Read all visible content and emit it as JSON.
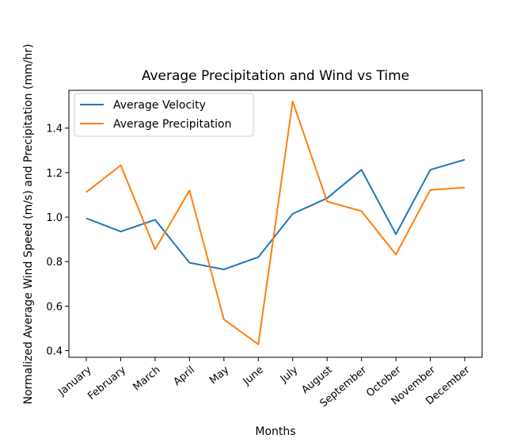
{
  "chart_data": {
    "type": "line",
    "title": "Average Precipitation and Wind vs Time",
    "xlabel": "Months",
    "ylabel": "Normalized Average Wind Speed (m/s) and Precipitation (mm/hr)",
    "categories": [
      "January",
      "February",
      "March",
      "April",
      "May",
      "June",
      "July",
      "August",
      "September",
      "October",
      "November",
      "December"
    ],
    "series": [
      {
        "name": "Average Velocity",
        "color": "#1f77b4",
        "values": [
          0.995,
          0.935,
          0.988,
          0.795,
          0.765,
          0.82,
          1.015,
          1.085,
          1.213,
          0.923,
          1.213,
          1.258
        ]
      },
      {
        "name": "Average Precipitation",
        "color": "#ff7f0e",
        "values": [
          1.112,
          1.233,
          0.855,
          1.12,
          0.54,
          0.428,
          1.52,
          1.07,
          1.027,
          0.832,
          1.122,
          1.133
        ]
      }
    ],
    "yticks": [
      "0.4",
      "0.6",
      "0.8",
      "1.0",
      "1.2",
      "1.4"
    ],
    "ylim": [
      0.37,
      1.57
    ],
    "grid": false,
    "legend_position": "upper left"
  }
}
